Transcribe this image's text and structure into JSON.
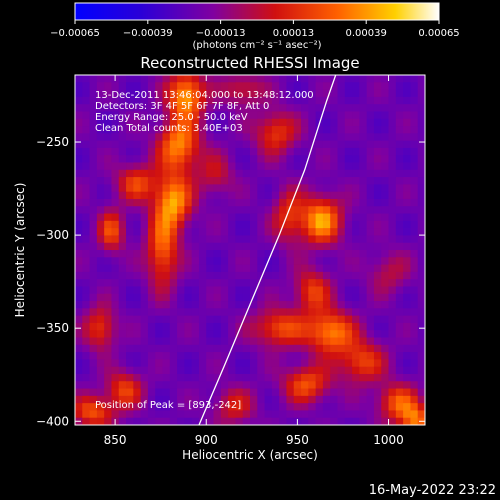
{
  "chart_data": {
    "type": "heatmap",
    "title": "Reconstructed RHESSI Image",
    "xlabel": "Heliocentric X (arcsec)",
    "ylabel": "Heliocentric Y (arcsec)",
    "xlim": [
      828,
      1020
    ],
    "ylim": [
      -402,
      -214
    ],
    "x_ticks": [
      850,
      900,
      950,
      1000
    ],
    "y_ticks": [
      -250,
      -300,
      -350,
      -400
    ],
    "x_tick_labels": [
      "850",
      "900",
      "950",
      "1000"
    ],
    "y_tick_labels": [
      "−250",
      "−300",
      "−350",
      "−400"
    ],
    "colorbar": {
      "min": -0.00065,
      "max": 0.00065,
      "ticks": [
        -0.00065,
        -0.00039,
        -0.00013,
        0.00013,
        0.00039,
        0.00065
      ],
      "tick_labels": [
        "−0.00065",
        "−0.00039",
        "−0.00013",
        "0.00013",
        "0.00039",
        "0.00065"
      ],
      "unit": "(photons cm⁻² s⁻¹ asec⁻²)"
    },
    "annotations": [
      "13-Dec-2011 13:46:04.000 to 13:48:12.000",
      "Detectors: 3F 4F 5F 6F 7F 8F, Att 0",
      "Energy Range: 25.0 - 50.0 keV",
      "Clean     Total counts: 3.40E+03"
    ],
    "peak_label": "Position of Peak = [893,-242]",
    "peak": [
      893,
      -242
    ],
    "limb": [
      [
        896,
        -402
      ],
      [
        910,
        -370
      ],
      [
        925,
        -335
      ],
      [
        940,
        -300
      ],
      [
        954,
        -265
      ],
      [
        966,
        -228
      ],
      [
        971,
        -214
      ]
    ],
    "sources": [
      {
        "x": 889,
        "y": -225,
        "amp": 0.00065,
        "sx": 7,
        "sy": 9
      },
      {
        "x": 885,
        "y": -252,
        "amp": 0.00058,
        "sx": 8,
        "sy": 10
      },
      {
        "x": 882,
        "y": -282,
        "amp": 0.0006,
        "sx": 7,
        "sy": 10
      },
      {
        "x": 876,
        "y": -308,
        "amp": 0.0005,
        "sx": 6,
        "sy": 14
      },
      {
        "x": 862,
        "y": -272,
        "amp": 0.0004,
        "sx": 8,
        "sy": 7
      },
      {
        "x": 848,
        "y": -298,
        "amp": 0.00042,
        "sx": 5,
        "sy": 8
      },
      {
        "x": 842,
        "y": -350,
        "amp": 0.0004,
        "sx": 6,
        "sy": 8
      },
      {
        "x": 855,
        "y": -383,
        "amp": 0.0004,
        "sx": 7,
        "sy": 7
      },
      {
        "x": 838,
        "y": -395,
        "amp": 0.00045,
        "sx": 8,
        "sy": 6
      },
      {
        "x": 905,
        "y": -268,
        "amp": 0.00025,
        "sx": 7,
        "sy": 8
      },
      {
        "x": 938,
        "y": -245,
        "amp": 0.0004,
        "sx": 8,
        "sy": 8
      },
      {
        "x": 945,
        "y": -290,
        "amp": 0.00035,
        "sx": 6,
        "sy": 10
      },
      {
        "x": 963,
        "y": -292,
        "amp": 0.00062,
        "sx": 8,
        "sy": 9
      },
      {
        "x": 958,
        "y": -330,
        "amp": 0.0004,
        "sx": 7,
        "sy": 8
      },
      {
        "x": 940,
        "y": -350,
        "amp": 0.00045,
        "sx": 10,
        "sy": 7
      },
      {
        "x": 968,
        "y": -352,
        "amp": 0.00058,
        "sx": 9,
        "sy": 8
      },
      {
        "x": 985,
        "y": -368,
        "amp": 0.00042,
        "sx": 9,
        "sy": 8
      },
      {
        "x": 955,
        "y": -380,
        "amp": 0.00045,
        "sx": 9,
        "sy": 7
      },
      {
        "x": 1005,
        "y": -390,
        "amp": 0.00045,
        "sx": 8,
        "sy": 7
      },
      {
        "x": 1015,
        "y": -400,
        "amp": 0.0005,
        "sx": 6,
        "sy": 6
      },
      {
        "x": 920,
        "y": -222,
        "amp": 0.0003,
        "sx": 8,
        "sy": 6
      },
      {
        "x": 1000,
        "y": -320,
        "amp": 0.00022,
        "sx": 8,
        "sy": 8
      },
      {
        "x": 915,
        "y": -392,
        "amp": 0.0003,
        "sx": 8,
        "sy": 7
      }
    ]
  },
  "footer": {
    "date": "16-May-2022 23:22"
  }
}
